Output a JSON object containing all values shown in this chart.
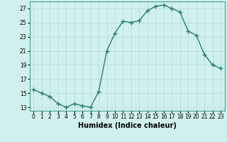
{
  "x": [
    0,
    1,
    2,
    3,
    4,
    5,
    6,
    7,
    8,
    9,
    10,
    11,
    12,
    13,
    14,
    15,
    16,
    17,
    18,
    19,
    20,
    21,
    22,
    23
  ],
  "y": [
    15.5,
    15.0,
    14.5,
    13.5,
    13.0,
    13.5,
    13.2,
    13.0,
    15.2,
    21.0,
    23.5,
    25.2,
    25.0,
    25.3,
    26.7,
    27.3,
    27.5,
    27.0,
    26.5,
    23.8,
    23.2,
    20.5,
    19.0,
    18.5
  ],
  "line_color": "#2e7d6e",
  "marker": "+",
  "marker_size": 4,
  "bg_color": "#cff0ec",
  "grid_color": "#b8ddd8",
  "xlabel": "Humidex (Indice chaleur)",
  "xlim": [
    -0.5,
    23.5
  ],
  "ylim": [
    12.5,
    28.0
  ],
  "yticks": [
    13,
    15,
    17,
    19,
    21,
    23,
    25,
    27
  ],
  "xticks": [
    0,
    1,
    2,
    3,
    4,
    5,
    6,
    7,
    8,
    9,
    10,
    11,
    12,
    13,
    14,
    15,
    16,
    17,
    18,
    19,
    20,
    21,
    22,
    23
  ],
  "tick_fontsize": 5.5,
  "xlabel_fontsize": 7,
  "line_width": 1.0,
  "spine_color": "#4a9e8e"
}
